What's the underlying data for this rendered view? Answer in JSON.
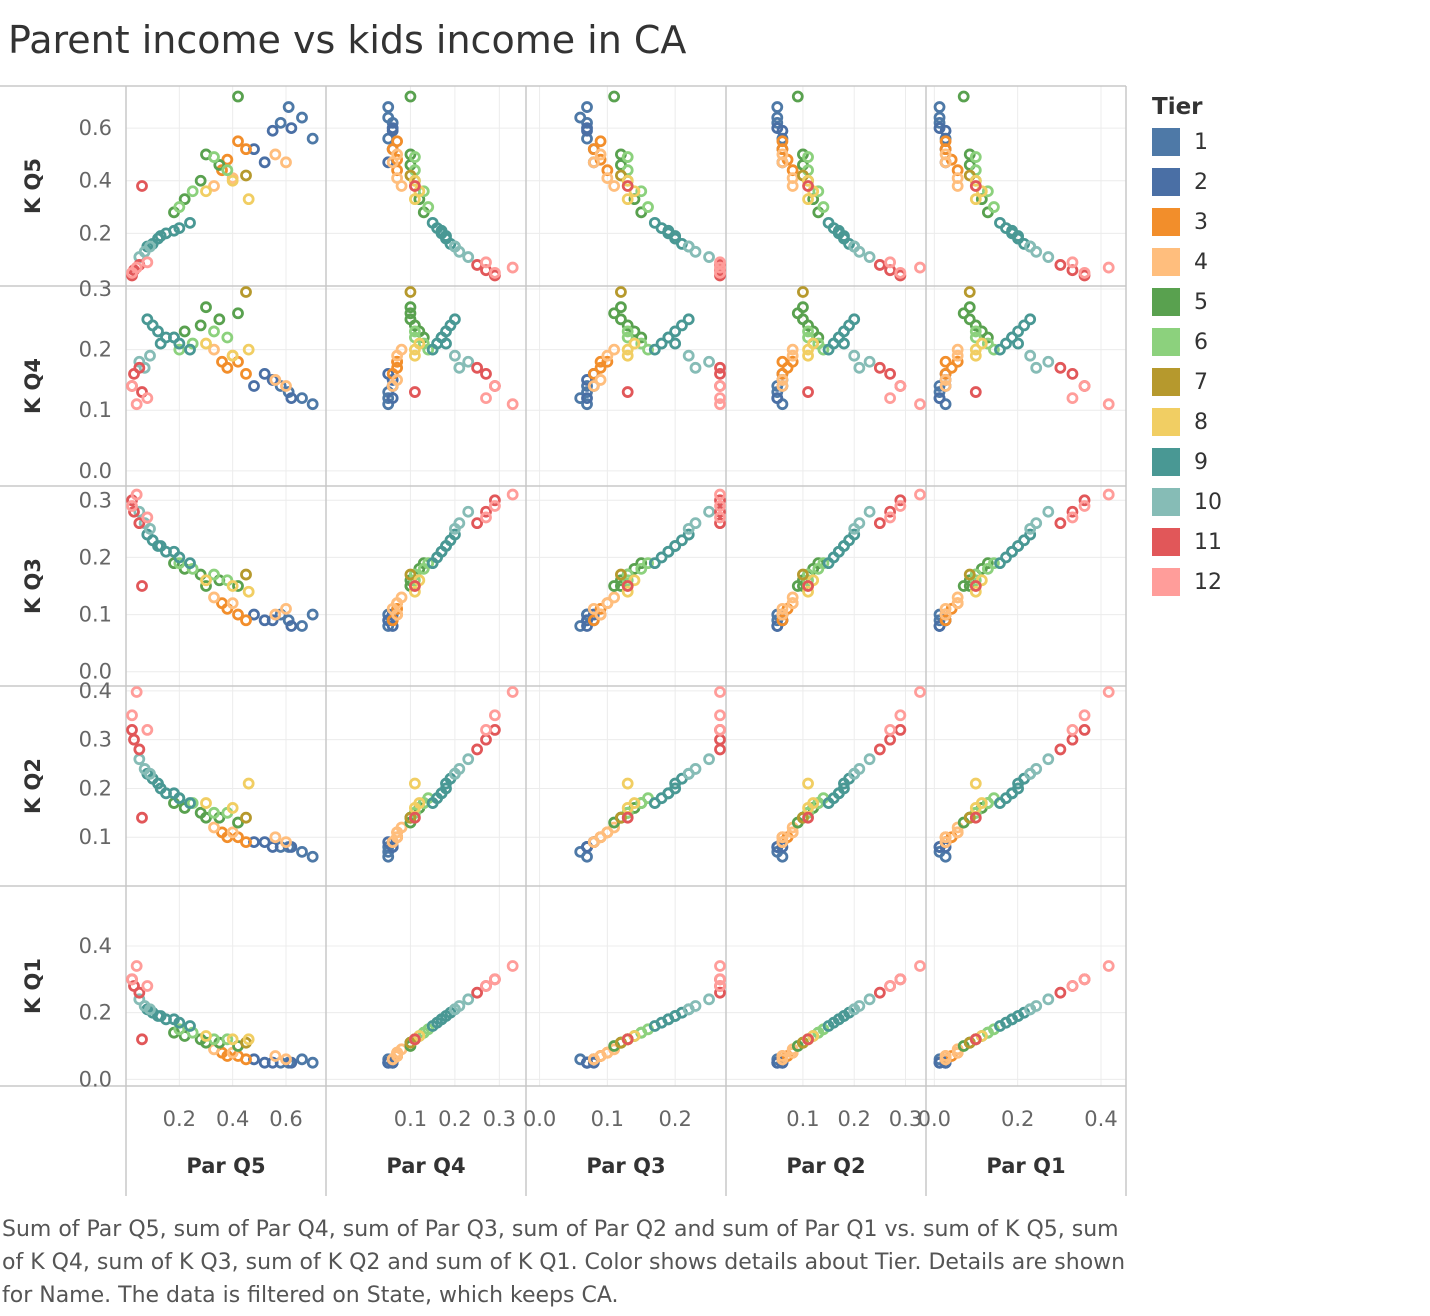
{
  "title": "Parent income vs kids income in CA",
  "caption": "Sum of Par Q5, sum of Par Q4, sum of Par Q3, sum of Par Q2 and sum of Par Q1 vs. sum of K Q5, sum of K Q4, sum of K Q3, sum of K Q2 and sum of K Q1.  Color shows details about Tier.  Details are shown for Name. The data is filtered on State, which keeps CA.",
  "legend": {
    "title": "Tier",
    "items": [
      {
        "label": "1",
        "color": "#4e79a7"
      },
      {
        "label": "2",
        "color": "#4a6fa5"
      },
      {
        "label": "3",
        "color": "#f28e2b"
      },
      {
        "label": "4",
        "color": "#ffbe7d"
      },
      {
        "label": "5",
        "color": "#59a14f"
      },
      {
        "label": "6",
        "color": "#8cd17d"
      },
      {
        "label": "7",
        "color": "#b6992d"
      },
      {
        "label": "8",
        "color": "#f1ce63"
      },
      {
        "label": "9",
        "color": "#499894"
      },
      {
        "label": "10",
        "color": "#86bcb6"
      },
      {
        "label": "11",
        "color": "#e15759"
      },
      {
        "label": "12",
        "color": "#ff9d9a"
      }
    ]
  },
  "chart_data": {
    "type": "scatter",
    "title": "Parent income vs kids income in CA",
    "columns": [
      {
        "label": "Par Q5",
        "ticks": [
          0.2,
          0.4,
          0.6
        ],
        "xlim": [
          0.0,
          0.75
        ]
      },
      {
        "label": "Par Q4",
        "ticks": [
          0.1,
          0.2,
          0.3
        ],
        "xlim": [
          -0.09,
          0.36
        ]
      },
      {
        "label": "Par Q3",
        "ticks": [
          0.0,
          0.1,
          0.2
        ],
        "xlim": [
          -0.02,
          0.275
        ]
      },
      {
        "label": "Par Q2",
        "ticks": [
          0.1,
          0.2,
          0.3
        ],
        "xlim": [
          -0.05,
          0.34
        ]
      },
      {
        "label": "Par Q1",
        "ticks": [
          0.0,
          0.2,
          0.4
        ],
        "xlim": [
          -0.02,
          0.46
        ]
      }
    ],
    "rows": [
      {
        "label": "K Q5",
        "ticks": [
          0.2,
          0.4,
          0.6
        ],
        "ylim": [
          0.0,
          0.76
        ]
      },
      {
        "label": "K Q4",
        "ticks": [
          0.0,
          0.1,
          0.2,
          0.3
        ],
        "ylim": [
          -0.025,
          0.305
        ]
      },
      {
        "label": "K Q3",
        "ticks": [
          0.0,
          0.1,
          0.2,
          0.3
        ],
        "ylim": [
          -0.025,
          0.325
        ]
      },
      {
        "label": "K Q2",
        "ticks": [
          0.1,
          0.2,
          0.3,
          0.4
        ],
        "ylim": [
          0.0,
          0.41
        ]
      },
      {
        "label": "K Q1",
        "ticks": [
          0.0,
          0.2,
          0.4
        ],
        "ylim": [
          -0.02,
          0.58
        ]
      }
    ],
    "grid": true,
    "legend_position": "right",
    "series": [
      {
        "name": "1",
        "points": [
          [
            0.61,
            0.68,
            0.13,
            0.09,
            0.08,
            0.05,
            0.05,
            0.07,
            0.05
          ],
          [
            0.66,
            0.64,
            0.12,
            0.08,
            0.07,
            0.06,
            0.05,
            0.06,
            0.05
          ],
          [
            0.58,
            0.62,
            0.14,
            0.1,
            0.08,
            0.05,
            0.06,
            0.07,
            0.05
          ],
          [
            0.7,
            0.56,
            0.11,
            0.1,
            0.06,
            0.05,
            0.05,
            0.07,
            0.06
          ]
        ]
      },
      {
        "name": "2",
        "points": [
          [
            0.55,
            0.59,
            0.15,
            0.09,
            0.08,
            0.05,
            0.06,
            0.07,
            0.06
          ],
          [
            0.48,
            0.52,
            0.14,
            0.1,
            0.09,
            0.06,
            0.06,
            0.08,
            0.06
          ],
          [
            0.52,
            0.47,
            0.16,
            0.09,
            0.09,
            0.05,
            0.05,
            0.08,
            0.06
          ],
          [
            0.62,
            0.6,
            0.12,
            0.08,
            0.08,
            0.05,
            0.06,
            0.07,
            0.05
          ]
        ]
      },
      {
        "name": "3",
        "points": [
          [
            0.42,
            0.55,
            0.18,
            0.1,
            0.1,
            0.07,
            0.07,
            0.09,
            0.06
          ],
          [
            0.38,
            0.48,
            0.17,
            0.11,
            0.1,
            0.07,
            0.07,
            0.09,
            0.07
          ],
          [
            0.45,
            0.52,
            0.16,
            0.09,
            0.09,
            0.06,
            0.06,
            0.08,
            0.06
          ],
          [
            0.36,
            0.44,
            0.18,
            0.12,
            0.11,
            0.08,
            0.07,
            0.1,
            0.08
          ]
        ]
      },
      {
        "name": "4",
        "points": [
          [
            0.56,
            0.5,
            0.15,
            0.1,
            0.1,
            0.07,
            0.07,
            0.09,
            0.06
          ],
          [
            0.4,
            0.41,
            0.19,
            0.12,
            0.11,
            0.08,
            0.07,
            0.1,
            0.08
          ],
          [
            0.6,
            0.47,
            0.14,
            0.11,
            0.09,
            0.06,
            0.06,
            0.08,
            0.06
          ],
          [
            0.33,
            0.38,
            0.2,
            0.13,
            0.12,
            0.09,
            0.08,
            0.11,
            0.08
          ]
        ]
      },
      {
        "name": "5",
        "points": [
          [
            0.35,
            0.46,
            0.25,
            0.16,
            0.14,
            0.11,
            0.1,
            0.12,
            0.1
          ],
          [
            0.28,
            0.4,
            0.24,
            0.17,
            0.15,
            0.12,
            0.11,
            0.13,
            0.11
          ],
          [
            0.42,
            0.72,
            0.26,
            0.15,
            0.13,
            0.1,
            0.1,
            0.11,
            0.09
          ],
          [
            0.22,
            0.33,
            0.23,
            0.18,
            0.16,
            0.13,
            0.12,
            0.14,
            0.12
          ],
          [
            0.3,
            0.5,
            0.27,
            0.15,
            0.14,
            0.11,
            0.1,
            0.12,
            0.1
          ],
          [
            0.18,
            0.28,
            0.22,
            0.19,
            0.17,
            0.14,
            0.13,
            0.15,
            0.13
          ]
        ]
      },
      {
        "name": "6",
        "points": [
          [
            0.38,
            0.44,
            0.22,
            0.16,
            0.15,
            0.12,
            0.11,
            0.13,
            0.11
          ],
          [
            0.25,
            0.36,
            0.21,
            0.18,
            0.17,
            0.14,
            0.13,
            0.15,
            0.13
          ],
          [
            0.33,
            0.49,
            0.23,
            0.17,
            0.15,
            0.12,
            0.11,
            0.13,
            0.11
          ],
          [
            0.2,
            0.3,
            0.2,
            0.19,
            0.18,
            0.15,
            0.14,
            0.16,
            0.14
          ]
        ]
      },
      {
        "name": "7",
        "points": [
          [
            0.45,
            0.42,
            0.3,
            0.17,
            0.14,
            0.11,
            0.1,
            0.12,
            0.1
          ]
        ]
      },
      {
        "name": "8",
        "points": [
          [
            0.4,
            0.4,
            0.19,
            0.15,
            0.16,
            0.12,
            0.11,
            0.13,
            0.11
          ],
          [
            0.3,
            0.36,
            0.21,
            0.16,
            0.17,
            0.13,
            0.12,
            0.14,
            0.12
          ],
          [
            0.46,
            0.33,
            0.2,
            0.14,
            0.21,
            0.12,
            0.11,
            0.13,
            0.11
          ]
        ]
      },
      {
        "name": "9",
        "points": [
          [
            0.15,
            0.2,
            0.22,
            0.21,
            0.19,
            0.18,
            0.17,
            0.19,
            0.17
          ],
          [
            0.12,
            0.18,
            0.23,
            0.22,
            0.21,
            0.19,
            0.18,
            0.2,
            0.18
          ],
          [
            0.2,
            0.22,
            0.21,
            0.2,
            0.18,
            0.17,
            0.16,
            0.18,
            0.16
          ],
          [
            0.1,
            0.16,
            0.24,
            0.23,
            0.22,
            0.2,
            0.19,
            0.21,
            0.19
          ],
          [
            0.18,
            0.21,
            0.22,
            0.21,
            0.19,
            0.18,
            0.17,
            0.19,
            0.17
          ],
          [
            0.08,
            0.15,
            0.25,
            0.24,
            0.23,
            0.21,
            0.2,
            0.22,
            0.2
          ],
          [
            0.24,
            0.24,
            0.2,
            0.19,
            0.17,
            0.16,
            0.15,
            0.17,
            0.15
          ],
          [
            0.13,
            0.19,
            0.21,
            0.22,
            0.2,
            0.19,
            0.18,
            0.2,
            0.18
          ]
        ]
      },
      {
        "name": "10",
        "points": [
          [
            0.07,
            0.13,
            0.17,
            0.26,
            0.24,
            0.22,
            0.21,
            0.23,
            0.21
          ],
          [
            0.05,
            0.11,
            0.18,
            0.28,
            0.26,
            0.24,
            0.23,
            0.25,
            0.23
          ],
          [
            0.09,
            0.15,
            0.19,
            0.25,
            0.23,
            0.21,
            0.2,
            0.22,
            0.2
          ]
        ]
      },
      {
        "name": "11",
        "points": [
          [
            0.03,
            0.06,
            0.16,
            0.28,
            0.3,
            0.28,
            0.27,
            0.29,
            0.27
          ],
          [
            0.01,
            0.04,
            0.14,
            0.3,
            0.32,
            0.3,
            0.29,
            0.31,
            0.29
          ],
          [
            0.05,
            0.08,
            0.17,
            0.26,
            0.28,
            0.26,
            0.25,
            0.27,
            0.25
          ],
          [
            0.06,
            0.38,
            0.13,
            0.15,
            0.14,
            0.12,
            0.11,
            0.13,
            0.11
          ]
        ]
      },
      {
        "name": "12",
        "points": [
          [
            0.02,
            0.05,
            0.14,
            0.29,
            0.35,
            0.3,
            0.29,
            0.31,
            0.29
          ],
          [
            0.04,
            0.07,
            0.11,
            0.31,
            0.4,
            0.34,
            0.33,
            0.35,
            0.33
          ],
          [
            0.08,
            0.09,
            0.12,
            0.27,
            0.32,
            0.28,
            0.27,
            0.29,
            0.27
          ]
        ]
      }
    ],
    "point_fields": [
      "Par Q5",
      "K Q5",
      "K Q4",
      "K Q3",
      "K Q2",
      "K Q1",
      "Par Q4",
      "Par Q3",
      "Par Q2"
    ]
  }
}
